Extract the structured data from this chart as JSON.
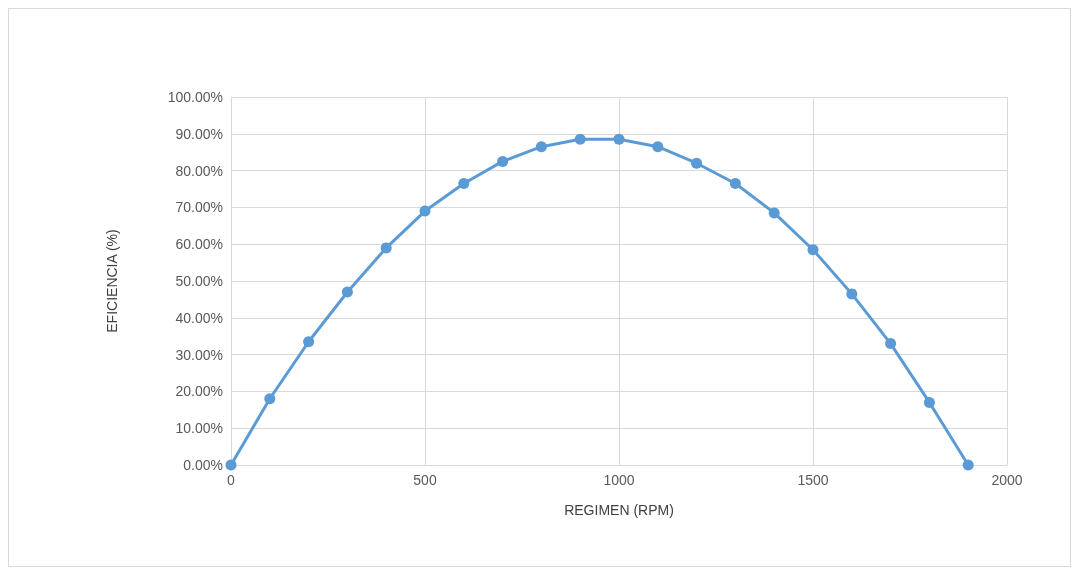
{
  "chart_data": {
    "type": "line",
    "xlabel": "REGIMEN (RPM)",
    "ylabel": "EFICIENCIA (%)",
    "x": [
      0,
      100,
      200,
      300,
      400,
      500,
      600,
      700,
      800,
      900,
      1000,
      1100,
      1200,
      1300,
      1400,
      1500,
      1600,
      1700,
      1800,
      1900
    ],
    "series": [
      {
        "color": "#5b9bd5",
        "values": [
          0,
          18,
          33.5,
          47,
          59,
          69,
          76.5,
          82.5,
          86.5,
          88.5,
          88.5,
          86.5,
          82,
          76.5,
          68.5,
          58.5,
          46.5,
          33,
          17,
          0
        ]
      }
    ],
    "xlim": [
      0,
      2000
    ],
    "xticks": [
      0,
      500,
      1000,
      1500,
      2000
    ],
    "ylim": [
      0,
      100
    ],
    "yticks": [
      {
        "value": 0,
        "label": "0.00%"
      },
      {
        "value": 10,
        "label": "10.00%"
      },
      {
        "value": 20,
        "label": "20.00%"
      },
      {
        "value": 30,
        "label": "30.00%"
      },
      {
        "value": 40,
        "label": "40.00%"
      },
      {
        "value": 50,
        "label": "50.00%"
      },
      {
        "value": 60,
        "label": "60.00%"
      },
      {
        "value": 70,
        "label": "70.00%"
      },
      {
        "value": 80,
        "label": "80.00%"
      },
      {
        "value": 90,
        "label": "90.00%"
      },
      {
        "value": 100,
        "label": "100.00%"
      }
    ],
    "grid": true,
    "marker": "circle",
    "line_style": "solid"
  }
}
